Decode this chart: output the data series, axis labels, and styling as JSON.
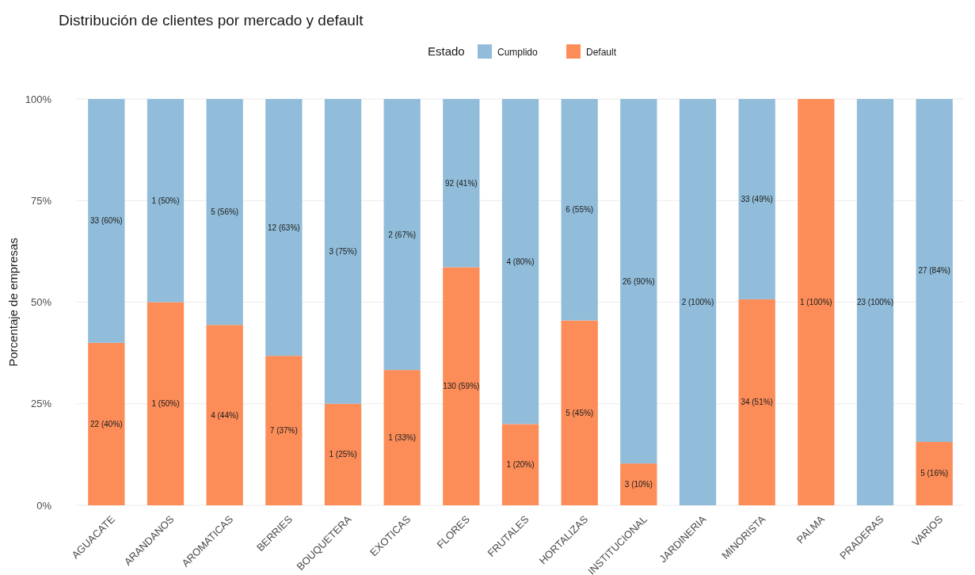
{
  "chart_data": {
    "type": "bar",
    "stacked": true,
    "title": "Distribución de clientes por mercado y default",
    "ylabel": "Porcentaje de empresas",
    "legend_title": "Estado",
    "legend": "top",
    "grid": "y",
    "categories": [
      "AGUACATE",
      "ARANDANOS",
      "AROMATICAS",
      "BERRIES",
      "BOUQUETERA",
      "EXOTICAS",
      "FLORES",
      "FRUTALES",
      "HORTALIZAS",
      "INSTITUCIONAL",
      "JARDINERIA",
      "MINORISTA",
      "PALMA",
      "PRADERAS",
      "VARIOS"
    ],
    "ylim": [
      0,
      100
    ],
    "yticks": [
      {
        "value": 0,
        "label": "0%"
      },
      {
        "value": 25,
        "label": "25%"
      },
      {
        "value": 50,
        "label": "50%"
      },
      {
        "value": 75,
        "label": "75%"
      },
      {
        "value": 100,
        "label": "100%"
      }
    ],
    "series": [
      {
        "name": "Default",
        "color": "#fc8d59",
        "values": [
          40,
          50,
          44.4,
          36.8,
          25,
          33.3,
          58.6,
          20,
          45.5,
          10.3,
          0,
          50.7,
          100,
          0,
          15.6
        ],
        "value_labels": [
          "22 (40%)",
          "1 (50%)",
          "4 (44%)",
          "7 (37%)",
          "1 (25%)",
          "1 (33%)",
          "130 (59%)",
          "1 (20%)",
          "5 (45%)",
          "3 (10%)",
          null,
          "34 (51%)",
          "1 (100%)",
          null,
          "5 (16%)"
        ]
      },
      {
        "name": "Cumplido",
        "color": "#91bdda",
        "values": [
          60,
          50,
          55.6,
          63.2,
          75,
          66.7,
          41.4,
          80,
          54.5,
          89.7,
          100,
          49.3,
          0,
          100,
          84.4
        ],
        "value_labels": [
          "33 (60%)",
          "1 (50%)",
          "5 (56%)",
          "12 (63%)",
          "3 (75%)",
          "2 (67%)",
          "92 (41%)",
          "4 (80%)",
          "6 (55%)",
          "26 (90%)",
          "2 (100%)",
          "33 (49%)",
          null,
          "23 (100%)",
          "27 (84%)"
        ]
      }
    ]
  }
}
